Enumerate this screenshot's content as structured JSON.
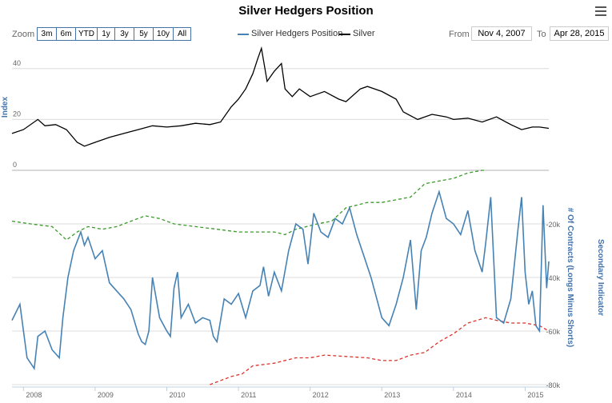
{
  "title": "Silver Hedgers Position",
  "zoom": {
    "label": "Zoom",
    "buttons": [
      "3m",
      "6m",
      "YTD",
      "1y",
      "3y",
      "5y",
      "10y",
      "All"
    ]
  },
  "range": {
    "from_label": "From",
    "from_value": "Nov 4, 2007",
    "to_label": "To",
    "to_value": "Apr 28, 2015"
  },
  "colors": {
    "hedgers": "#4682b4",
    "silver": "#000000",
    "upper_band": "#3a9a2a",
    "lower_band": "#d9342b"
  },
  "chart_data": {
    "type": "line",
    "title": "Silver Hedgers Position",
    "legend": [
      "Silver Hedgers Position",
      "Silver"
    ],
    "x_range": [
      2007.84,
      2015.33
    ],
    "x_ticks": [
      "2008",
      "2009",
      "2010",
      "2011",
      "2012",
      "2013",
      "2014",
      "2015"
    ],
    "top_panel": {
      "ylabel": "Index",
      "ylim": [
        0,
        50
      ],
      "y_ticks": [
        "0",
        "20",
        "40"
      ],
      "series": [
        {
          "name": "Silver",
          "x": [
            2007.84,
            2008.0,
            2008.2,
            2008.3,
            2008.45,
            2008.6,
            2008.75,
            2008.85,
            2009.0,
            2009.2,
            2009.4,
            2009.6,
            2009.8,
            2010.0,
            2010.2,
            2010.4,
            2010.6,
            2010.75,
            2010.9,
            2011.0,
            2011.1,
            2011.2,
            2011.27,
            2011.32,
            2011.4,
            2011.5,
            2011.6,
            2011.65,
            2011.75,
            2011.85,
            2012.0,
            2012.2,
            2012.4,
            2012.5,
            2012.7,
            2012.8,
            2013.0,
            2013.2,
            2013.3,
            2013.5,
            2013.7,
            2013.9,
            2014.0,
            2014.2,
            2014.4,
            2014.6,
            2014.8,
            2014.95,
            2015.1,
            2015.2,
            2015.33
          ],
          "values": [
            14.5,
            16,
            20,
            17.5,
            18,
            16,
            11,
            9.5,
            11,
            13,
            14.5,
            16,
            17.5,
            17,
            17.5,
            18.5,
            18,
            19,
            25,
            28,
            32,
            38,
            44,
            48,
            35,
            39,
            42,
            32,
            29,
            32,
            29,
            31,
            28,
            27,
            32,
            33,
            31,
            28,
            23,
            20,
            22,
            21,
            20,
            20.5,
            19,
            21,
            18,
            16,
            17,
            17,
            16.5
          ]
        }
      ]
    },
    "bottom_panel": {
      "ylabel": "# Of Contracts (Longs Minus Shorts)",
      "ylabel_secondary": "Secondary Indicator",
      "ylim": [
        -80000,
        0
      ],
      "y_ticks": [
        "-20k",
        "-40k",
        "-60k",
        "-80k"
      ],
      "series": [
        {
          "name": "Silver Hedgers Position",
          "x": [
            2007.84,
            2007.95,
            2008.05,
            2008.15,
            2008.2,
            2008.3,
            2008.4,
            2008.5,
            2008.55,
            2008.62,
            2008.7,
            2008.8,
            2008.85,
            2008.9,
            2009.0,
            2009.1,
            2009.2,
            2009.3,
            2009.4,
            2009.5,
            2009.6,
            2009.65,
            2009.7,
            2009.75,
            2009.8,
            2009.9,
            2010.0,
            2010.05,
            2010.1,
            2010.15,
            2010.2,
            2010.3,
            2010.4,
            2010.5,
            2010.6,
            2010.65,
            2010.7,
            2010.8,
            2010.9,
            2011.0,
            2011.1,
            2011.2,
            2011.3,
            2011.35,
            2011.42,
            2011.5,
            2011.6,
            2011.7,
            2011.8,
            2011.9,
            2011.97,
            2012.05,
            2012.15,
            2012.25,
            2012.35,
            2012.45,
            2012.55,
            2012.65,
            2012.75,
            2012.85,
            2013.0,
            2013.1,
            2013.2,
            2013.3,
            2013.4,
            2013.48,
            2013.55,
            2013.62,
            2013.7,
            2013.8,
            2013.9,
            2014.0,
            2014.1,
            2014.2,
            2014.3,
            2014.4,
            2014.45,
            2014.52,
            2014.6,
            2014.7,
            2014.8,
            2014.9,
            2014.95,
            2015.0,
            2015.05,
            2015.1,
            2015.15,
            2015.2,
            2015.25,
            2015.3,
            2015.33
          ],
          "values": [
            -56000,
            -50000,
            -70000,
            -74000,
            -62000,
            -60000,
            -67000,
            -70000,
            -55000,
            -40000,
            -30000,
            -23000,
            -28000,
            -25000,
            -33000,
            -30000,
            -42000,
            -45000,
            -48000,
            -52000,
            -61000,
            -64000,
            -65000,
            -60000,
            -40000,
            -55000,
            -60000,
            -62000,
            -44000,
            -38000,
            -55000,
            -50000,
            -57000,
            -55000,
            -56000,
            -62000,
            -64000,
            -48000,
            -50000,
            -46000,
            -55000,
            -45000,
            -43000,
            -36000,
            -47000,
            -38000,
            -45000,
            -30000,
            -20000,
            -22000,
            -35000,
            -16000,
            -23000,
            -25000,
            -18000,
            -20000,
            -14000,
            -24000,
            -32000,
            -40000,
            -55000,
            -58000,
            -50000,
            -40000,
            -26000,
            -52000,
            -30000,
            -25000,
            -16000,
            -8000,
            -18000,
            -20000,
            -24000,
            -15000,
            -30000,
            -38000,
            -27000,
            -10000,
            -55000,
            -57000,
            -48000,
            -22000,
            -10000,
            -38000,
            -50000,
            -45000,
            -58000,
            -60000,
            -13000,
            -44000,
            -34000
          ]
        },
        {
          "name": "",
          "style": "dashed",
          "x": [
            2007.84,
            2008.1,
            2008.4,
            2008.6,
            2008.75,
            2008.9,
            2009.1,
            2009.3,
            2009.5,
            2009.7,
            2009.9,
            2010.1,
            2010.4,
            2010.7,
            2011.0,
            2011.3,
            2011.5,
            2011.65,
            2011.8,
            2012.1,
            2012.3,
            2012.5,
            2012.8,
            2013.0,
            2013.2,
            2013.4,
            2013.6,
            2013.8,
            2014.0,
            2014.2,
            2014.3,
            2014.4,
            2014.45
          ],
          "values": [
            -19000,
            -20000,
            -21000,
            -26000,
            -23000,
            -21000,
            -22000,
            -21000,
            -19000,
            -17000,
            -18000,
            -20000,
            -21000,
            -22000,
            -23000,
            -23000,
            -23000,
            -24000,
            -22000,
            -20000,
            -19000,
            -14000,
            -12000,
            -12000,
            -11000,
            -10000,
            -5000,
            -4000,
            -3000,
            -1000,
            -500,
            0,
            0
          ]
        },
        {
          "name": "",
          "style": "dashed",
          "x": [
            2010.6,
            2010.9,
            2011.05,
            2011.2,
            2011.5,
            2011.8,
            2012.0,
            2012.2,
            2012.5,
            2012.8,
            2013.0,
            2013.2,
            2013.4,
            2013.6,
            2013.8,
            2014.0,
            2014.2,
            2014.45,
            2014.6,
            2014.8,
            2015.0,
            2015.2,
            2015.33
          ],
          "values": [
            -80000,
            -77000,
            -76000,
            -73000,
            -72000,
            -70000,
            -70000,
            -69000,
            -69500,
            -70000,
            -71000,
            -71000,
            -69000,
            -68000,
            -64000,
            -61000,
            -57000,
            -55000,
            -56000,
            -57000,
            -57000,
            -58000,
            -60000
          ]
        }
      ]
    }
  }
}
